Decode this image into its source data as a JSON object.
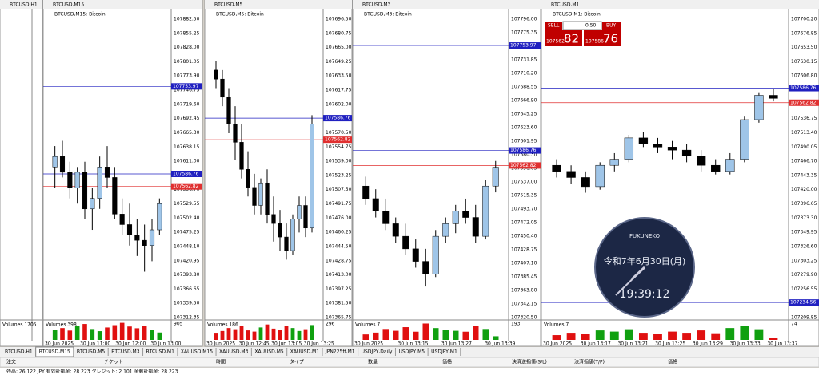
{
  "windows": [
    {
      "header": "BTCUSD,H1",
      "volumes_label": "Volumes 1705"
    },
    {
      "header": "BTCUSD,M15",
      "subtitle": "BTCUSD,M15: Bitcoin",
      "ylim": [
        107312.35,
        107882.5
      ],
      "price_labels": [
        "107882.50",
        "107855.25",
        "107828.00",
        "107801.05",
        "107773.90",
        "107746.75",
        "107719.60",
        "107692.45",
        "107665.30",
        "107638.15",
        "107611.00",
        "107583.85",
        "107556.70",
        "107529.55",
        "107502.40",
        "107475.25",
        "107448.10",
        "107420.95",
        "107393.80",
        "107366.65",
        "107339.50",
        "107312.35"
      ],
      "levels": [
        {
          "value": 107753.97,
          "color": "#2020c0"
        },
        {
          "value": 107586.76,
          "color": "#2020c0"
        },
        {
          "value": 107562.82,
          "color": "#e03030"
        }
      ],
      "candles": [
        [
          107600,
          107640,
          107560,
          107620
        ],
        [
          107620,
          107650,
          107580,
          107590
        ],
        [
          107590,
          107610,
          107540,
          107560
        ],
        [
          107560,
          107600,
          107530,
          107590
        ],
        [
          107590,
          107610,
          107500,
          107520
        ],
        [
          107520,
          107560,
          107480,
          107540
        ],
        [
          107540,
          107620,
          107520,
          107600
        ],
        [
          107600,
          107640,
          107560,
          107580
        ],
        [
          107580,
          107600,
          107500,
          107510
        ],
        [
          107510,
          107540,
          107470,
          107490
        ],
        [
          107490,
          107530,
          107450,
          107470
        ],
        [
          107470,
          107500,
          107430,
          107460
        ],
        [
          107460,
          107490,
          107400,
          107450
        ],
        [
          107450,
          107500,
          107420,
          107480
        ],
        [
          107480,
          107540,
          107470,
          107530
        ]
      ],
      "volumes": [
        520,
        610,
        480,
        700,
        820,
        560,
        450,
        640,
        760,
        880,
        690,
        600,
        720,
        500,
        380
      ],
      "vol_ylim": [
        0,
        905
      ],
      "vol_label": "905",
      "volumes_label": "Volumes 398",
      "times": [
        "30 Jun 2025",
        "30 Jun 11:00",
        "30 Jun 12:00",
        "30 Jun 13:00"
      ]
    },
    {
      "header": "BTCUSD,M5",
      "subtitle": "BTCUSD,M5: Bitcoin",
      "ylim": [
        107365.75,
        107696.5
      ],
      "price_labels": [
        "107696.50",
        "107680.75",
        "107665.00",
        "107649.25",
        "107633.50",
        "107617.75",
        "107602.00",
        "107586.25",
        "107570.50",
        "107554.75",
        "107539.00",
        "107523.25",
        "107507.50",
        "107491.75",
        "107476.00",
        "107460.25",
        "107444.50",
        "107428.75",
        "107413.00",
        "107397.25",
        "107381.50",
        "107365.75"
      ],
      "levels": [
        {
          "value": 107586.76,
          "color": "#2020c0"
        },
        {
          "value": 107562.82,
          "color": "#e03030"
        }
      ],
      "candles": [
        [
          107640,
          107650,
          107620,
          107630
        ],
        [
          107630,
          107640,
          107600,
          107610
        ],
        [
          107610,
          107620,
          107570,
          107580
        ],
        [
          107580,
          107600,
          107540,
          107560
        ],
        [
          107560,
          107580,
          107520,
          107530
        ],
        [
          107530,
          107550,
          107500,
          107510
        ],
        [
          107510,
          107525,
          107480,
          107490
        ],
        [
          107490,
          107520,
          107480,
          107515
        ],
        [
          107515,
          107530,
          107470,
          107480
        ],
        [
          107480,
          107500,
          107450,
          107470
        ],
        [
          107470,
          107485,
          107440,
          107455
        ],
        [
          107455,
          107470,
          107430,
          107440
        ],
        [
          107440,
          107480,
          107435,
          107475
        ],
        [
          107475,
          107500,
          107460,
          107490
        ],
        [
          107490,
          107500,
          107455,
          107465
        ],
        [
          107465,
          107590,
          107460,
          107580
        ]
      ],
      "volumes": [
        120,
        150,
        200,
        180,
        240,
        160,
        140,
        210,
        260,
        190,
        170,
        230,
        200,
        150,
        180,
        250
      ],
      "vol_ylim": [
        0,
        296
      ],
      "vol_label": "296",
      "volumes_label": "Volumes 186",
      "times": [
        "30 Jun 2025",
        "30 Jun 12:45",
        "30 Jun 13:05",
        "30 Jun 13:25"
      ]
    },
    {
      "header": "BTCUSD,M3",
      "subtitle": "BTCUSD,M3: Bitcoin",
      "ylim": [
        107320.5,
        107796
      ],
      "price_labels": [
        "107796.00",
        "107775.35",
        "107753.70",
        "107731.85",
        "107710.20",
        "107688.55",
        "107666.90",
        "107645.25",
        "107623.60",
        "107601.95",
        "107580.30",
        "107558.65",
        "107537.00",
        "107515.35",
        "107493.70",
        "107472.05",
        "107450.40",
        "107428.75",
        "107407.10",
        "107385.45",
        "107363.80",
        "107342.15",
        "107320.50"
      ],
      "levels": [
        {
          "value": 107753.97,
          "color": "#2020c0"
        },
        {
          "value": 107586.76,
          "color": "#2020c0"
        },
        {
          "value": 107562.82,
          "color": "#e03030"
        }
      ],
      "candles": [
        [
          107530,
          107545,
          107500,
          107510
        ],
        [
          107510,
          107525,
          107480,
          107490
        ],
        [
          107490,
          107510,
          107460,
          107470
        ],
        [
          107470,
          107480,
          107440,
          107450
        ],
        [
          107450,
          107470,
          107420,
          107430
        ],
        [
          107430,
          107445,
          107400,
          107410
        ],
        [
          107410,
          107430,
          107370,
          107390
        ],
        [
          107390,
          107460,
          107385,
          107450
        ],
        [
          107450,
          107480,
          107440,
          107470
        ],
        [
          107470,
          107500,
          107455,
          107490
        ],
        [
          107490,
          107510,
          107470,
          107480
        ],
        [
          107480,
          107500,
          107440,
          107450
        ],
        [
          107450,
          107540,
          107445,
          107530
        ],
        [
          107530,
          107570,
          107520,
          107560
        ]
      ],
      "volumes": [
        60,
        80,
        120,
        100,
        140,
        90,
        180,
        130,
        110,
        100,
        90,
        150,
        120,
        40
      ],
      "vol_ylim": [
        0,
        193
      ],
      "vol_label": "193",
      "volumes_label": "Volumes 7",
      "times": [
        "30 Jun 2025",
        "30 Jun 13:15",
        "30 Jun 13:27",
        "30 Jun 13:39"
      ]
    },
    {
      "header": "BTCUSD,M1",
      "subtitle": "BTCUSD,M1: Bitcoin",
      "ylim": [
        107209.85,
        107700.2
      ],
      "price_labels": [
        "107700.20",
        "107676.85",
        "107653.50",
        "107630.15",
        "107606.80",
        "107583.45",
        "107560.10",
        "107536.75",
        "107513.40",
        "107490.05",
        "107466.70",
        "107443.35",
        "107420.00",
        "107396.65",
        "107373.30",
        "107349.95",
        "107326.60",
        "107303.25",
        "107279.90",
        "107256.55",
        "107233.20",
        "107209.85"
      ],
      "levels": [
        {
          "value": 107586.76,
          "color": "#2020c0"
        },
        {
          "value": 107562.82,
          "color": "#e03030"
        },
        {
          "value": 107234.56,
          "color": "#2020c0"
        }
      ],
      "candles": [
        [
          107460,
          107470,
          107440,
          107450
        ],
        [
          107450,
          107460,
          107430,
          107440
        ],
        [
          107440,
          107450,
          107415,
          107425
        ],
        [
          107425,
          107465,
          107420,
          107460
        ],
        [
          107460,
          107480,
          107450,
          107470
        ],
        [
          107470,
          107510,
          107465,
          107505
        ],
        [
          107505,
          107515,
          107490,
          107495
        ],
        [
          107495,
          107505,
          107480,
          107490
        ],
        [
          107490,
          107500,
          107470,
          107485
        ],
        [
          107485,
          107495,
          107465,
          107475
        ],
        [
          107475,
          107485,
          107450,
          107460
        ],
        [
          107460,
          107470,
          107445,
          107450
        ],
        [
          107450,
          107480,
          107445,
          107470
        ],
        [
          107470,
          107540,
          107465,
          107535
        ],
        [
          107535,
          107580,
          107530,
          107575
        ],
        [
          107575,
          107585,
          107565,
          107570
        ]
      ],
      "volumes": [
        20,
        30,
        25,
        40,
        35,
        45,
        30,
        25,
        35,
        30,
        40,
        28,
        50,
        60,
        45,
        10
      ],
      "vol_ylim": [
        0,
        74
      ],
      "vol_label": "74",
      "volumes_label": "Volumes 7",
      "times": [
        "30 Jun 2025",
        "30 Jun 13:17",
        "30 Jun 13:21",
        "30 Jun 13:25",
        "30 Jun 13:29",
        "30 Jun 13:33",
        "30 Jun 13:37"
      ]
    }
  ],
  "trade_panel": {
    "sell": "SELL",
    "lot": "0.50",
    "buy": "BUY",
    "bid_big": "107562",
    "bid_small": "82",
    "ask_big": "107586",
    "ask_small": "76"
  },
  "clock": {
    "brand": "FUKUNEKO",
    "date": "令和7年6月30日(月)",
    "time": "19:39:12"
  },
  "tabs": [
    "BTCUSD,H1",
    "BTCUSD,M15",
    "BTCUSD,M5",
    "BTCUSD,M3",
    "BTCUSD,M1",
    "XAUUSD,M15",
    "XAUUSD,M3",
    "XAUUSD,M5",
    "XAUUSD,M1",
    "JPN225ft,M1",
    "USDJPY,Daily",
    "USDJPY,M5",
    "USDJPY,M1"
  ],
  "terminal": {
    "columns": [
      "注文",
      "チケット",
      "時間",
      "タイプ",
      "数量",
      "価格",
      "決済逆指値(S/L)",
      "決済指値(T/P)",
      "価格"
    ],
    "account": "残高: 26 122 JPY  有効証拠金: 28 223  クレジット: 2 101  余剰証拠金: 28 223"
  }
}
